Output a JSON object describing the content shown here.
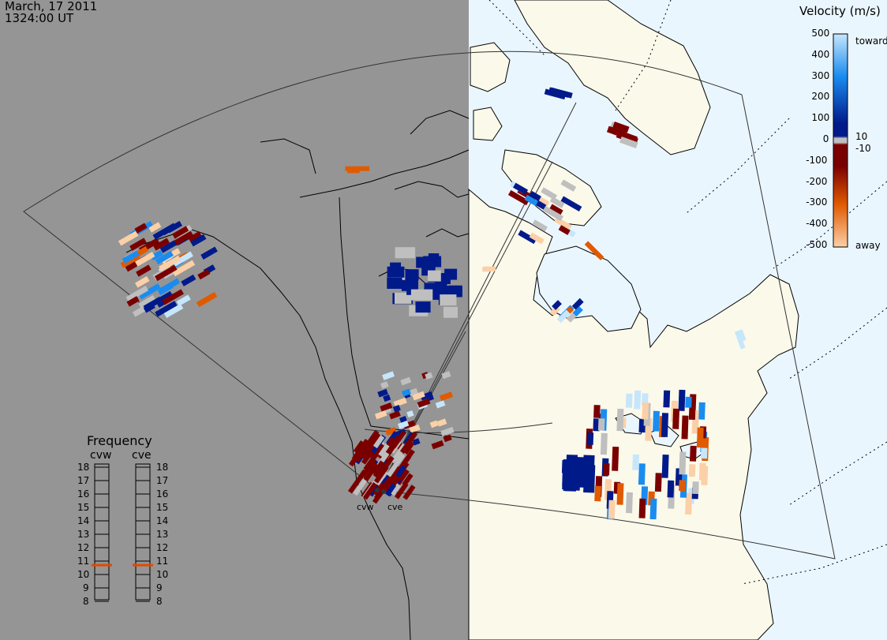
{
  "title": {
    "date": "March, 17 2011",
    "time": "1324:00 UT"
  },
  "colorbar": {
    "title": "Velocity (m/s)",
    "ticks": [
      "500",
      "400",
      "300",
      "200",
      "100",
      "0",
      "-100",
      "-200",
      "-300",
      "-400",
      "-500"
    ],
    "inner_ticks": [
      "10",
      "-10"
    ],
    "toward_label": "toward",
    "away_label": "away",
    "colors": {
      "toward_high": "#c6e6fb",
      "toward_mid": "#1a8cf0",
      "toward_low": "#001a8a",
      "ground": "#bfbfbf",
      "away_low": "#7a0000",
      "away_mid": "#e05a00",
      "away_high": "#fbd0a8"
    }
  },
  "frequency": {
    "title": "Frequency",
    "radars": [
      "cvw",
      "cve"
    ],
    "scale": [
      "18",
      "17",
      "16",
      "15",
      "14",
      "13",
      "12",
      "11",
      "10",
      "9",
      "8"
    ],
    "cvw_mhz": 10.7,
    "cve_mhz": 10.7,
    "marker_color": "#e04a00"
  },
  "radars": {
    "cvw": "cvw",
    "cve": "cve"
  },
  "map_colors": {
    "night": "#959595",
    "land_day": "#fbf9ea",
    "ocean_day": "#eaf6fe",
    "coast": "#000000"
  }
}
